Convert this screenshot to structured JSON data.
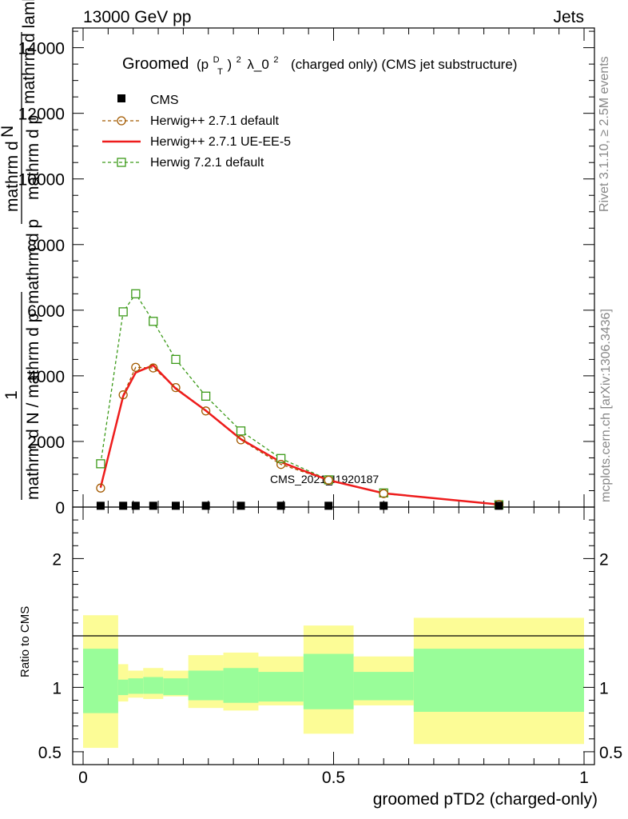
{
  "header": {
    "left": "13000 GeV pp",
    "right": "Jets"
  },
  "plot_title": {
    "prefix": "Groomed",
    "p": "(p",
    "sup_D": "D",
    "sub_T": "T",
    "close": ")",
    "sup_2": "2",
    "lambda": "λ_0",
    "sup_2b": "2",
    "suffix": "(charged only) (CMS jet substructure)"
  },
  "side_labels": {
    "rivet": "Rivet 3.1.10, ≥ 2.5M events",
    "mcplots": "mcplots.cern.ch [arXiv:1306.3436]"
  },
  "watermark": "CMS_2021_I1920187",
  "y_axis_label": {
    "one": "1",
    "denominator": "mathrm d N / mathrm d p",
    "numerator": "mathrm d",
    "numerator_tail": "N",
    "den_line1": "mathrm d p",
    "den_line1_tail": "mathrm d p",
    "den_line2": "mathrm d lambda",
    "overlap_hint": "mathrm d N / mathrm d p mathrm d p mathrm d lambda"
  },
  "ratio_label": "Ratio to CMS",
  "x_axis_label": "groomed pTD2 (charged-only)",
  "legend": [
    {
      "label": "CMS",
      "color": "#000000",
      "style": "square"
    },
    {
      "label": "Herwig++ 2.7.1 default",
      "color": "#a35a00",
      "style": "circle-dashed"
    },
    {
      "label": "Herwig++ 2.7.1 UE-EE-5",
      "color": "#ee1c1c",
      "style": "solid"
    },
    {
      "label": "Herwig 7.2.1 default",
      "color": "#3c9a19",
      "style": "square-dashed"
    }
  ],
  "chart_data": {
    "type": "line",
    "xlim": [
      0,
      1
    ],
    "ylim": [
      0,
      14600
    ],
    "x_ticks": [
      "0",
      "0.5",
      "1"
    ],
    "y_ticks": [
      "2000",
      "4000",
      "6000",
      "8000",
      "10000",
      "12000",
      "14000"
    ],
    "y_tick_values": [
      2000,
      4000,
      6000,
      8000,
      10000,
      12000,
      14000
    ],
    "ratio_ylim": [
      0.4,
      2.4
    ],
    "ratio_ticks": [
      "0.5",
      "1",
      "2"
    ],
    "ratio_tick_values": [
      0.5,
      1,
      2
    ],
    "bin_edges": [
      0.0,
      0.07,
      0.09,
      0.12,
      0.16,
      0.21,
      0.28,
      0.35,
      0.44,
      0.54,
      0.66,
      1.0
    ],
    "bin_centers": [
      0.035,
      0.08,
      0.105,
      0.14,
      0.185,
      0.245,
      0.315,
      0.395,
      0.49,
      0.6,
      0.83
    ],
    "series": [
      {
        "name": "CMS",
        "values": [
          40,
          40,
          40,
          40,
          40,
          40,
          40,
          40,
          40,
          40,
          40
        ]
      },
      {
        "name": "Herwig++ 2.7.1 default",
        "values": [
          580,
          3420,
          4260,
          4240,
          3640,
          2930,
          2050,
          1300,
          820,
          410,
          80
        ]
      },
      {
        "name": "Herwig++ 2.7.1 UE-EE-5",
        "values": [
          600,
          3380,
          4100,
          4320,
          3610,
          2940,
          2070,
          1370,
          820,
          420,
          80
        ]
      },
      {
        "name": "Herwig 7.2.1 default",
        "values": [
          1320,
          5950,
          6500,
          5660,
          4500,
          3380,
          2320,
          1480,
          830,
          430,
          70
        ]
      }
    ],
    "ratio_bands": {
      "green_upper": [
        1.3,
        1.06,
        1.07,
        1.08,
        1.07,
        1.13,
        1.15,
        1.12,
        1.26,
        1.12,
        1.3
      ],
      "green_lower": [
        0.8,
        0.94,
        0.95,
        0.95,
        0.94,
        0.9,
        0.88,
        0.89,
        0.83,
        0.9,
        0.81
      ],
      "yellow_upper": [
        1.56,
        1.18,
        1.13,
        1.15,
        1.13,
        1.25,
        1.27,
        1.24,
        1.48,
        1.24,
        1.54
      ],
      "yellow_lower": [
        0.53,
        0.89,
        0.92,
        0.91,
        0.93,
        0.84,
        0.82,
        0.86,
        0.64,
        0.86,
        0.56
      ]
    }
  }
}
